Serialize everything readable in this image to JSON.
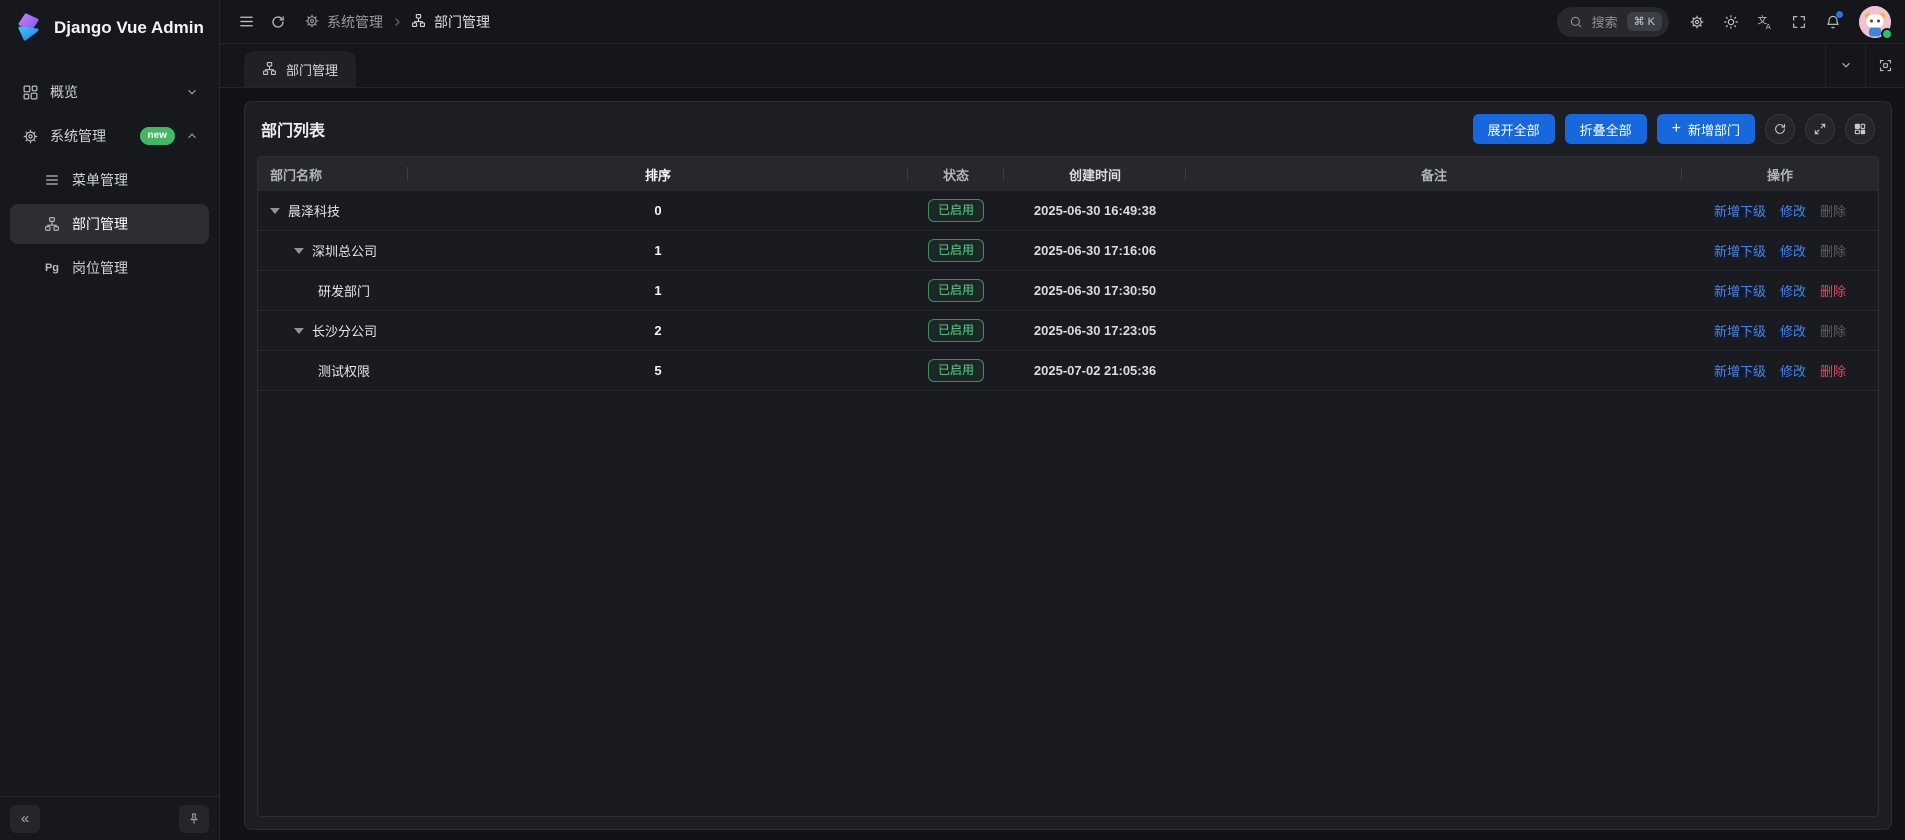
{
  "app": {
    "title": "Django Vue Admin"
  },
  "colors": {
    "primary": "#1668dc",
    "success": "#58d189",
    "danger": "#e0485e",
    "badge_new": "#42b862"
  },
  "sidebar": {
    "overview": {
      "label": "概览"
    },
    "system": {
      "label": "系统管理",
      "badge": "new"
    },
    "menu_mgmt": {
      "label": "菜单管理"
    },
    "dept_mgmt": {
      "label": "部门管理"
    },
    "post_mgmt": {
      "label": "岗位管理",
      "icon_text": "Pg"
    },
    "collapse_glyph": "«"
  },
  "topbar": {
    "breadcrumb": {
      "parent": "系统管理",
      "current": "部门管理"
    },
    "search": {
      "placeholder": "搜索",
      "shortcut": "⌘ K"
    }
  },
  "tabbar": {
    "active_tab": "部门管理"
  },
  "card": {
    "title": "部门列表",
    "toolbar": {
      "expand_all": "展开全部",
      "collapse_all": "折叠全部",
      "add_new": "新增部门"
    }
  },
  "table": {
    "columns": [
      "部门名称",
      "排序",
      "状态",
      "创建时间",
      "备注",
      "操作"
    ],
    "action_labels": {
      "add_child": "新增下级",
      "edit": "修改",
      "delete": "删除"
    },
    "rows": [
      {
        "name": "晨泽科技",
        "level": 0,
        "expandable": true,
        "sort": "0",
        "status": "已启用",
        "created": "2025-06-30 16:49:38",
        "remark": "",
        "delete_enabled": false
      },
      {
        "name": "深圳总公司",
        "level": 1,
        "expandable": true,
        "sort": "1",
        "status": "已启用",
        "created": "2025-06-30 17:16:06",
        "remark": "",
        "delete_enabled": false
      },
      {
        "name": "研发部门",
        "level": 2,
        "expandable": false,
        "sort": "1",
        "status": "已启用",
        "created": "2025-06-30 17:30:50",
        "remark": "",
        "delete_enabled": true
      },
      {
        "name": "长沙分公司",
        "level": 1,
        "expandable": true,
        "sort": "2",
        "status": "已启用",
        "created": "2025-06-30 17:23:05",
        "remark": "",
        "delete_enabled": false
      },
      {
        "name": "测试权限",
        "level": 2,
        "expandable": false,
        "sort": "5",
        "status": "已启用",
        "created": "2025-07-02 21:05:36",
        "remark": "",
        "delete_enabled": true
      }
    ]
  }
}
